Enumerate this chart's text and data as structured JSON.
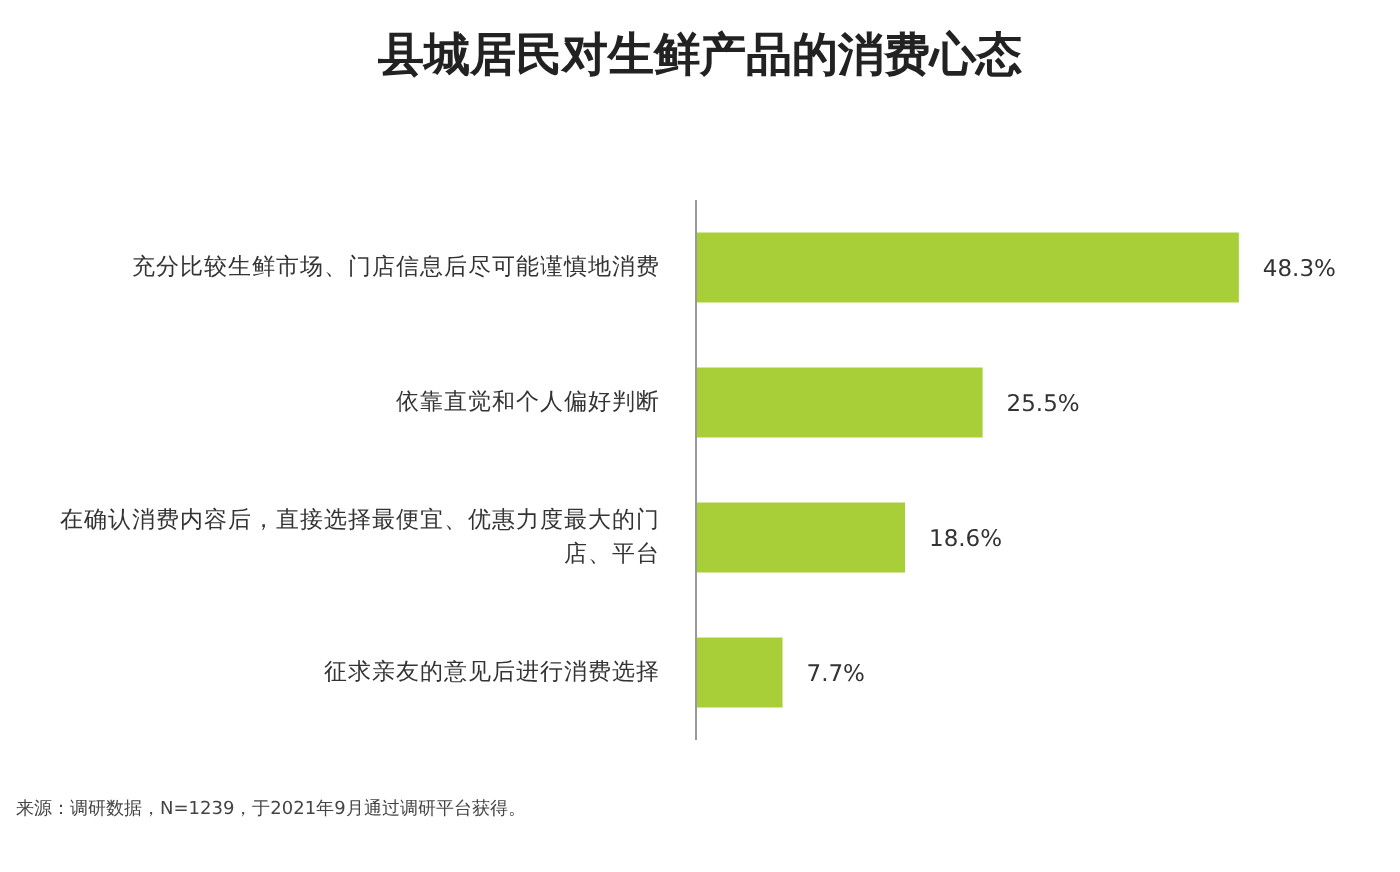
{
  "chart_data": {
    "type": "bar",
    "orientation": "horizontal",
    "title": "县城居民对生鲜产品的消费心态",
    "categories": [
      "充分比较生鲜市场、门店信息后尽可能谨慎地消费",
      "依靠直觉和个人偏好判断",
      "在确认消费内容后，直接选择最便宜、优惠力度最大的门店、平台",
      "征求亲友的意见后进行消费选择"
    ],
    "values": [
      48.3,
      25.5,
      18.6,
      7.7
    ],
    "value_labels": [
      "48.3%",
      "25.5%",
      "18.6%",
      "7.7%"
    ],
    "color": "#a9cf38",
    "grid": false,
    "legend": false,
    "annotations": [
      "来源：调研数据，N=1239，于2021年9月通过调研平台获得。"
    ]
  }
}
